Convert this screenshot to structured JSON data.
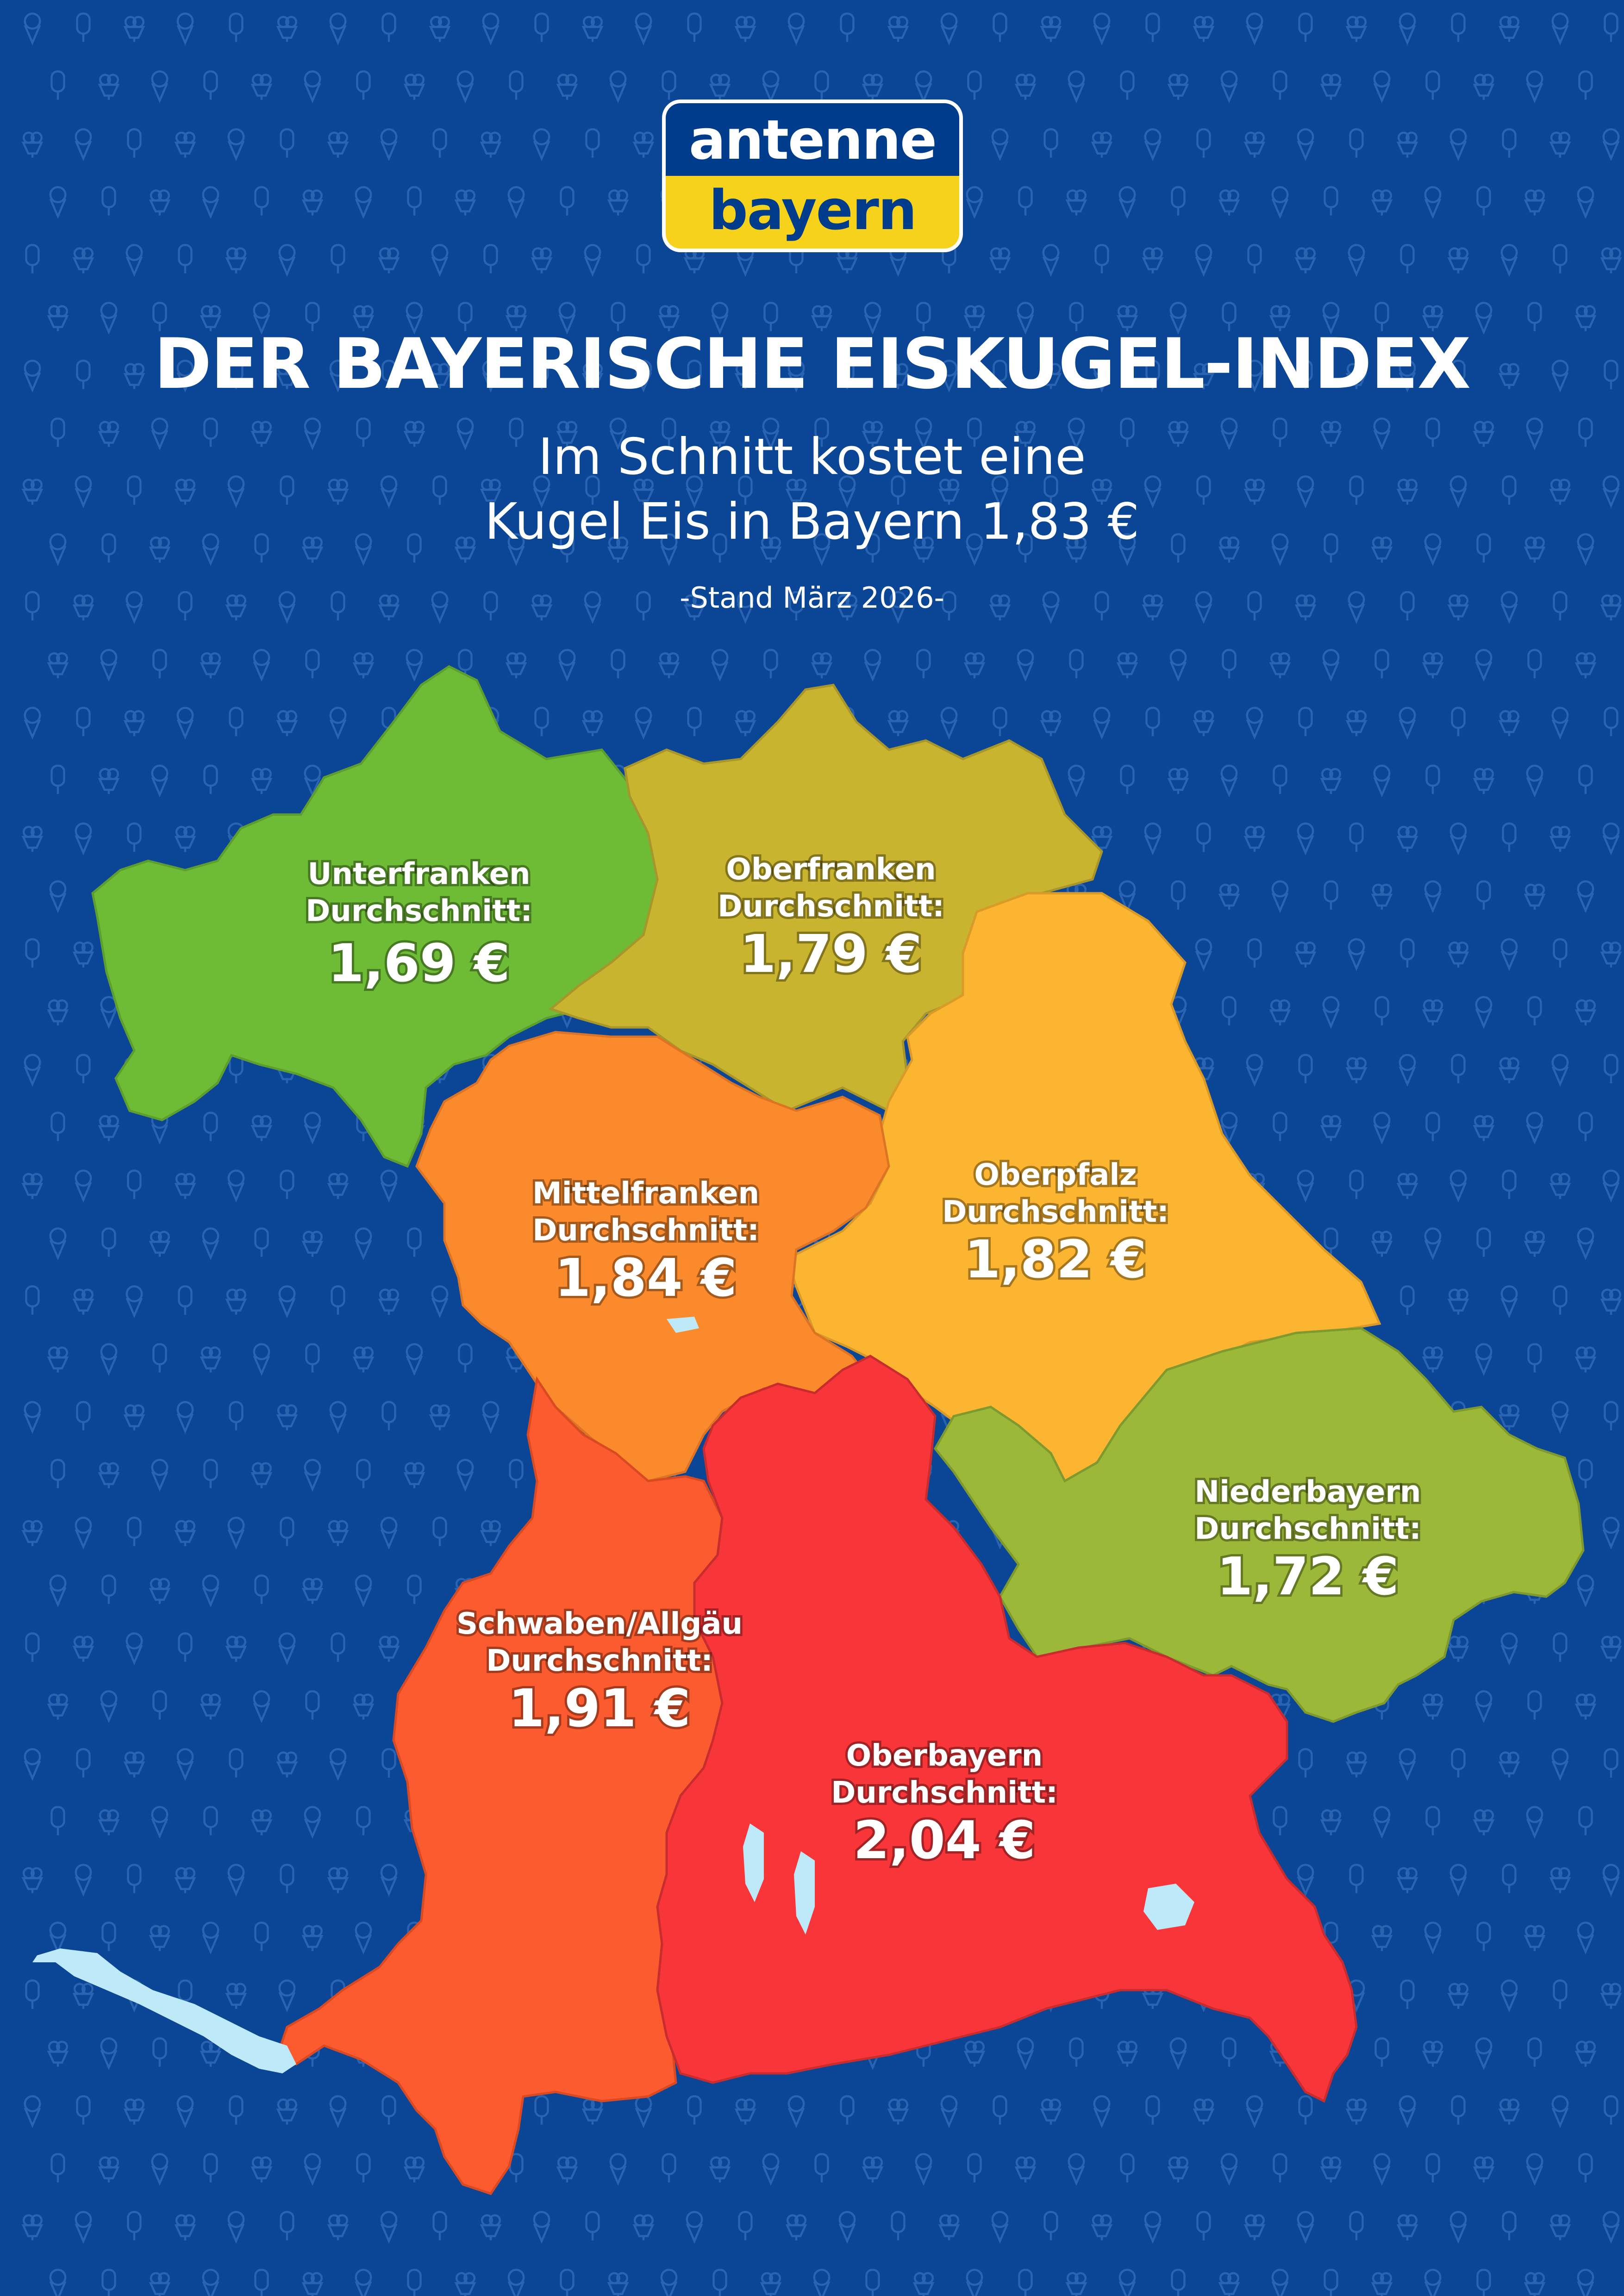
{
  "logo": {
    "line1": "antenne",
    "line2": "bayern"
  },
  "title": "DER BAYERISCHE EISKUGEL-INDEX",
  "subtitle_line1": "Im Schnitt kostet eine",
  "subtitle_line2": "Kugel Eis in Bayern 1,83 €",
  "stand": "-Stand März 2026-",
  "colors": {
    "background": "#0b4595",
    "unterfranken": "#6ebb35",
    "oberfranken": "#c8b42e",
    "oberpfalz": "#fbb530",
    "mittelfranken": "#fb8a2c",
    "niederbayern": "#9cb838",
    "schwaben": "#fb5b2e",
    "oberbayern": "#f8363a",
    "lake": "#bde9f9"
  },
  "regions": {
    "unterfranken": {
      "name": "Unterfranken",
      "label": "Durchschnitt:",
      "price": "1,69 €"
    },
    "oberfranken": {
      "name": "Oberfranken",
      "label": "Durchschnitt:",
      "price": "1,79 €"
    },
    "mittelfranken": {
      "name": "Mittelfranken",
      "label": "Durchschnitt:",
      "price": "1,84 €"
    },
    "oberpfalz": {
      "name": "Oberpfalz",
      "label": "Durchschnitt:",
      "price": "1,82 €"
    },
    "niederbayern": {
      "name": "Niederbayern",
      "label": "Durchschnitt:",
      "price": "1,72 €"
    },
    "schwaben": {
      "name": "Schwaben/Allgäu",
      "label": "Durchschnitt:",
      "price": "1,91 €"
    },
    "oberbayern": {
      "name": "Oberbayern",
      "label": "Durchschnitt:",
      "price": "2,04 €"
    }
  },
  "icons": [
    "ice-cream-cone-icon",
    "popsicle-icon",
    "ice-cream-cup-icon"
  ]
}
